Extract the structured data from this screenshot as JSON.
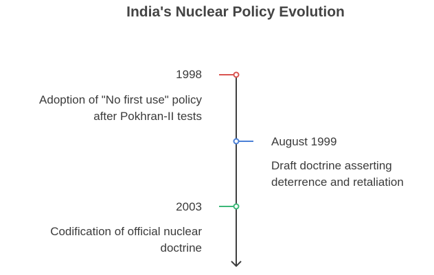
{
  "title": "India's Nuclear Policy Evolution",
  "events": [
    {
      "date": "1998",
      "line1": "Adoption of \"No first use\" policy",
      "line2": "after Pokhran-II tests",
      "color": "#d9534f"
    },
    {
      "date": "August 1999",
      "line1": "Draft doctrine asserting",
      "line2": "deterrence and retaliation",
      "color": "#4a7fd6"
    },
    {
      "date": "2003",
      "line1": "Codification of official nuclear",
      "line2": "doctrine",
      "color": "#3cb878"
    }
  ]
}
